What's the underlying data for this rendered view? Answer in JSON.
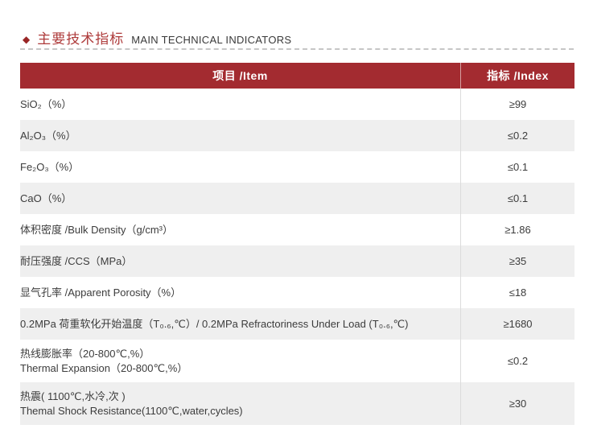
{
  "section": {
    "bullet_icon": "◆",
    "title_zh": "主要技术指标",
    "title_en": "MAIN TECHNICAL INDICATORS"
  },
  "table": {
    "header": {
      "item": "项目 /Item",
      "index": "指标 /Index"
    },
    "rows": [
      {
        "line1": "SiO₂（%）",
        "value": "≥99"
      },
      {
        "line1": "Al₂O₃（%）",
        "value": "≤0.2"
      },
      {
        "line1": "Fe₂O₃（%）",
        "value": "≤0.1"
      },
      {
        "line1": "CaO（%）",
        "value": "≤0.1"
      },
      {
        "line1": "体积密度 /Bulk Density（g/cm³）",
        "value": "≥1.86"
      },
      {
        "line1": "耐压强度 /CCS（MPa）",
        "value": "≥35"
      },
      {
        "line1": "显气孔率 /Apparent Porosity（%）",
        "value": "≤18"
      },
      {
        "line1": "0.2MPa 荷重软化开始温度（T₀.₆,℃）/ 0.2MPa Refractoriness Under Load (T₀.₆,℃)",
        "value": "≥1680"
      },
      {
        "line1": "热线膨胀率（20-800℃,%）",
        "line2": "Thermal Expansion（20-800℃,%）",
        "value": "≤0.2"
      },
      {
        "line1": "热震( 1100℃,水冷,次 )",
        "line2": "Themal Shock Resistance(1100℃,water,cycles)",
        "value": "≥30"
      }
    ]
  },
  "colors": {
    "header_bg": "#A32B30",
    "title_red": "#AE3B3B",
    "bullet_red": "#992626",
    "row_alt_bg": "#EFEFEF",
    "body_text": "#3C3C3C"
  }
}
